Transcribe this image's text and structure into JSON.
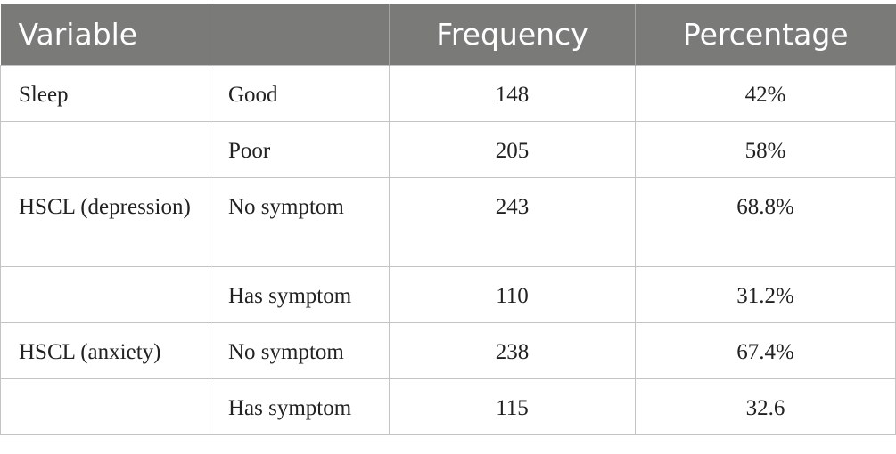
{
  "table": {
    "headers": {
      "variable": "Variable",
      "category": "",
      "frequency": "Frequency",
      "percentage": "Percentage"
    },
    "rows": [
      {
        "variable": "Sleep",
        "category": "Good",
        "frequency": "148",
        "percentage": "42%"
      },
      {
        "variable": "",
        "category": "Poor",
        "frequency": "205",
        "percentage": "58%"
      },
      {
        "variable": "HSCL (depression)",
        "category": "No symptom",
        "frequency": "243",
        "percentage": "68.8%"
      },
      {
        "variable": "",
        "category": "Has symptom",
        "frequency": "110",
        "percentage": "31.2%"
      },
      {
        "variable": "HSCL (anxiety)",
        "category": "No symptom",
        "frequency": "238",
        "percentage": "67.4%"
      },
      {
        "variable": "",
        "category": "Has symptom",
        "frequency": "115",
        "percentage": "32.6"
      }
    ]
  },
  "colors": {
    "header_background": "#7a7b79",
    "header_text": "#ffffff",
    "border": "#c4c4c4"
  }
}
